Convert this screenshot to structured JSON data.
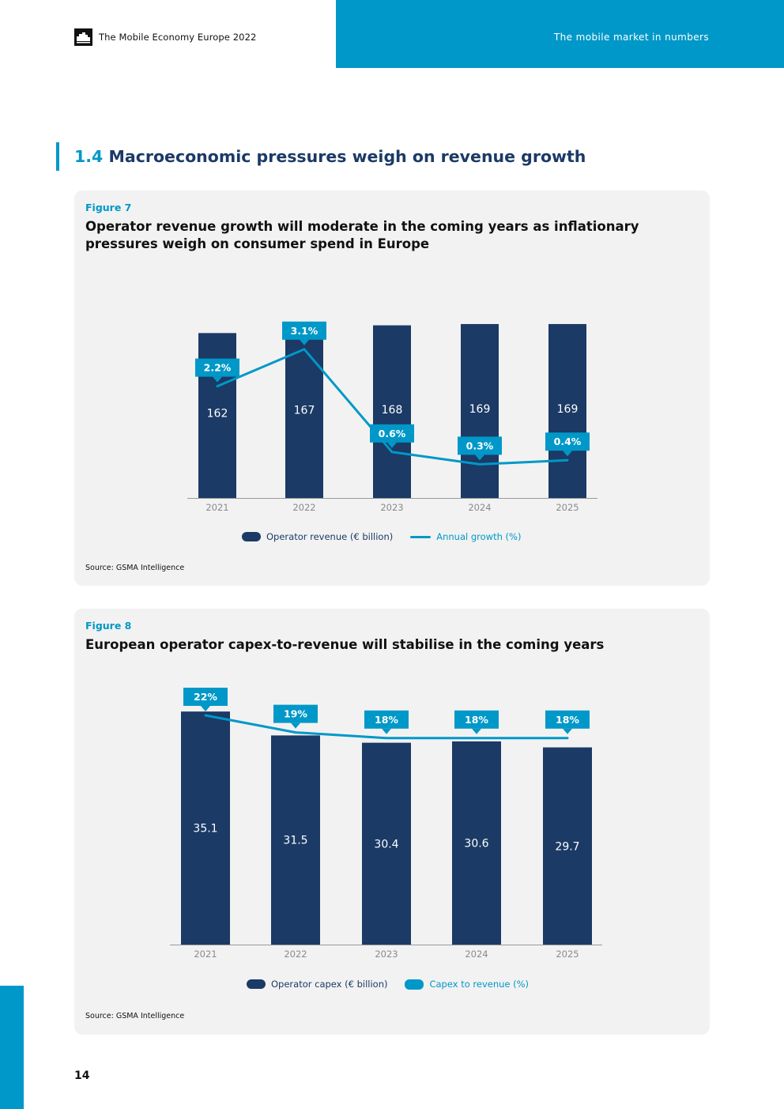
{
  "header": {
    "doc_title": "The Mobile Economy Europe 2022",
    "section_label": "The mobile market in numbers",
    "logo_icon": "gsma-building-logo-icon"
  },
  "section": {
    "number": "1.4",
    "title": "Macroeconomic pressures weigh on revenue growth"
  },
  "figures": [
    {
      "label": "Figure 7",
      "title": "Operator revenue growth will moderate in the coming years as inflationary pressures weigh on consumer spend in Europe",
      "source": "Source: GSMA Intelligence",
      "legend": {
        "bar": "Operator revenue (€ billion)",
        "line": "Annual growth (%)"
      }
    },
    {
      "label": "Figure 8",
      "title": "European operator capex-to-revenue will stabilise in the coming years",
      "source": "Source: GSMA Intelligence",
      "legend": {
        "bar": "Operator capex (€ billion)",
        "line": "Capex to revenue (%)"
      }
    }
  ],
  "chart_data": [
    {
      "type": "bar",
      "categories": [
        "2021",
        "2022",
        "2023",
        "2024",
        "2025"
      ],
      "series": [
        {
          "name": "Operator revenue (€ billion)",
          "type": "bar",
          "values": [
            162,
            167,
            168,
            169,
            169
          ],
          "labels": [
            "162",
            "167",
            "168",
            "169",
            "169"
          ]
        },
        {
          "name": "Annual growth (%)",
          "type": "line",
          "values": [
            2.2,
            3.1,
            0.6,
            0.3,
            0.4
          ],
          "labels": [
            "2.2%",
            "3.1%",
            "0.6%",
            "0.3%",
            "0.4%"
          ]
        }
      ],
      "colors": {
        "bar": "#1b3a66",
        "line": "#0098c8"
      },
      "legend_position": "bottom"
    },
    {
      "type": "bar",
      "categories": [
        "2021",
        "2022",
        "2023",
        "2024",
        "2025"
      ],
      "series": [
        {
          "name": "Operator capex (€ billion)",
          "type": "bar",
          "values": [
            35.1,
            31.5,
            30.4,
            30.6,
            29.7
          ],
          "labels": [
            "35.1",
            "31.5",
            "30.4",
            "30.6",
            "29.7"
          ]
        },
        {
          "name": "Capex to revenue (%)",
          "type": "line",
          "values": [
            22,
            19,
            18,
            18,
            18
          ],
          "labels": [
            "22%",
            "19%",
            "18%",
            "18%",
            "18%"
          ]
        }
      ],
      "colors": {
        "bar": "#1b3a66",
        "line": "#0098c8"
      },
      "legend_position": "bottom"
    }
  ],
  "page_number": "14"
}
